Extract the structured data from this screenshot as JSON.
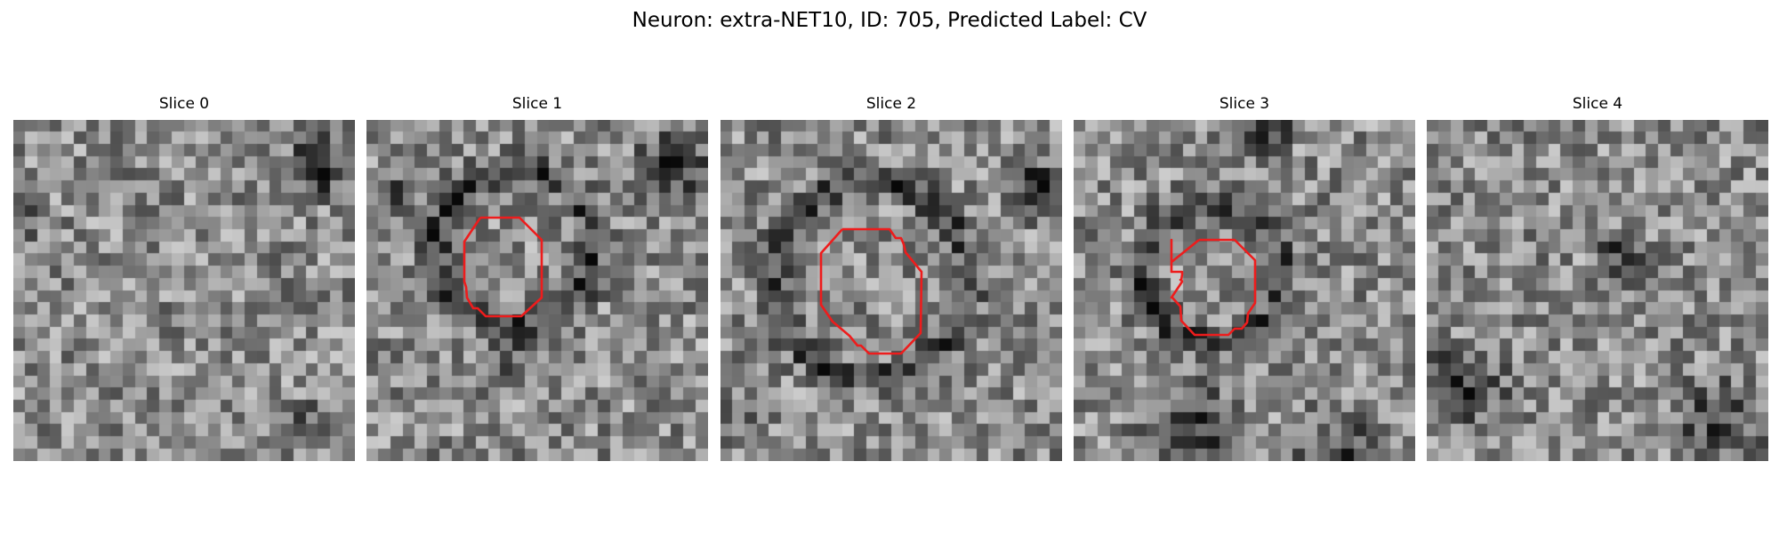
{
  "figure": {
    "title": "Neuron: extra-NET10, ID: 705, Predicted Label: CV"
  },
  "slices": [
    {
      "title": "Slice 0",
      "has_contour": false,
      "grid": 28,
      "seed": 11
    },
    {
      "title": "Slice 1",
      "has_contour": true,
      "grid": 28,
      "seed": 23
    },
    {
      "title": "Slice 2",
      "has_contour": true,
      "grid": 28,
      "seed": 37
    },
    {
      "title": "Slice 3",
      "has_contour": true,
      "grid": 28,
      "seed": 51
    },
    {
      "title": "Slice 4",
      "has_contour": false,
      "grid": 28,
      "seed": 67
    }
  ],
  "colors": {
    "contour": "#ee1c1c",
    "background": "#ffffff",
    "text": "#000000"
  },
  "colormap": "gray",
  "image_content": "grayscale noisy microscopy crops; slices 1-3 show a dark ring with a red segmentation contour"
}
